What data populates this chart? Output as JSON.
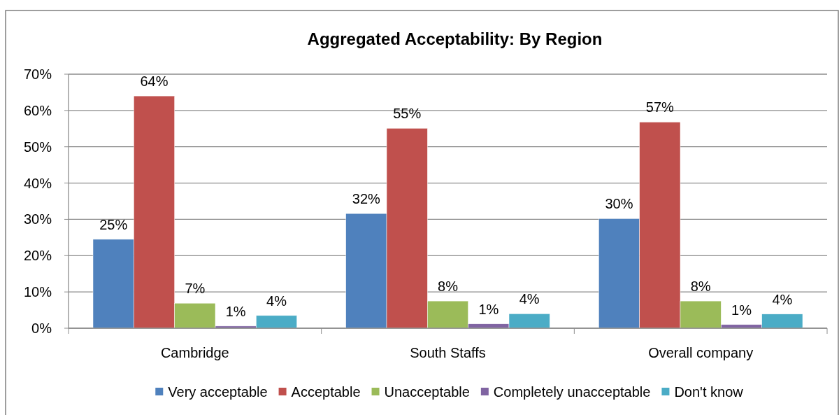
{
  "chart_data": {
    "type": "bar",
    "title": "Aggregated Acceptability: By Region",
    "categories": [
      "Cambridge",
      "South Staffs",
      "Overall company"
    ],
    "series": [
      {
        "name": "Very acceptable",
        "color": "#4f81bd",
        "values": [
          24.5,
          31.6,
          30.2
        ],
        "value_labels": [
          "25%",
          "32%",
          "30%"
        ]
      },
      {
        "name": "Acceptable",
        "color": "#c0504d",
        "values": [
          64.0,
          55.1,
          56.8
        ],
        "value_labels": [
          "64%",
          "55%",
          "57%"
        ]
      },
      {
        "name": "Unacceptable",
        "color": "#9bbb59",
        "values": [
          6.9,
          7.5,
          7.5
        ],
        "value_labels": [
          "7%",
          "8%",
          "8%"
        ]
      },
      {
        "name": "Completely unacceptable",
        "color": "#8064a2",
        "values": [
          0.6,
          1.2,
          1.0
        ],
        "value_labels": [
          "1%",
          "1%",
          "1%"
        ]
      },
      {
        "name": "Don't know",
        "color": "#4bacc6",
        "values": [
          3.5,
          4.0,
          3.9
        ],
        "value_labels": [
          "4%",
          "4%",
          "4%"
        ]
      }
    ],
    "ylim": [
      0,
      70
    ],
    "yticks": [
      {
        "value": 0,
        "label": "0%"
      },
      {
        "value": 10,
        "label": "10%"
      },
      {
        "value": 20,
        "label": "20%"
      },
      {
        "value": 30,
        "label": "30%"
      },
      {
        "value": 40,
        "label": "40%"
      },
      {
        "value": 50,
        "label": "50%"
      },
      {
        "value": 60,
        "label": "60%"
      },
      {
        "value": 70,
        "label": "70%"
      }
    ],
    "grid": "y",
    "legend": "bottom"
  }
}
